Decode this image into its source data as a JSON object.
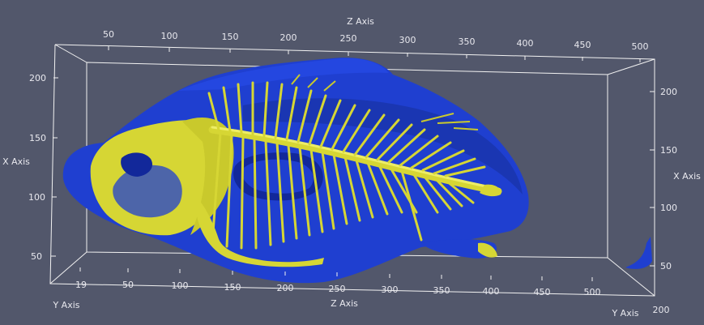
{
  "colors": {
    "background": "#52576b",
    "skin": "#1f3fd0",
    "skin_dark": "#12289a",
    "bone": "#d6d634",
    "bone_shadow": "#8f8f18",
    "axis": "#f2f2f2"
  },
  "axes": {
    "z_top": {
      "title": "Z Axis",
      "ticks": [
        "50",
        "100",
        "150",
        "200",
        "250",
        "300",
        "350",
        "400",
        "450",
        "500"
      ]
    },
    "z_bottom": {
      "title": "Z Axis",
      "ticks": [
        "50",
        "100",
        "150",
        "200",
        "250",
        "300",
        "350",
        "400",
        "450",
        "500"
      ]
    },
    "x_left": {
      "title": "X Axis",
      "ticks": [
        "200",
        "150",
        "100",
        "50"
      ]
    },
    "x_right": {
      "title": "X Axis",
      "ticks": [
        "200",
        "150",
        "100",
        "50"
      ]
    },
    "y_left": {
      "title": "Y Axis",
      "ticks": [
        "19"
      ]
    },
    "y_right": {
      "title": "Y Axis",
      "ticks": [
        "200"
      ]
    }
  }
}
